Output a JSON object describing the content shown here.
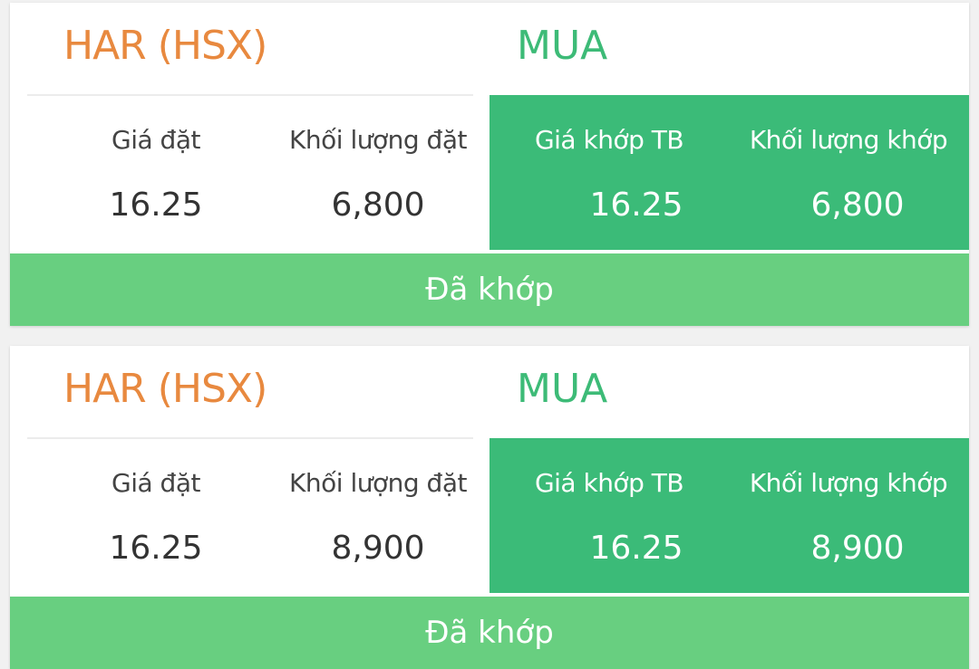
{
  "orders": [
    {
      "symbol": "HAR (HSX)",
      "side": "MUA",
      "order_price_label": "Giá đặt",
      "order_qty_label": "Khối lượng đặt",
      "match_price_label": "Giá khớp TB",
      "match_qty_label": "Khối lượng khớp",
      "order_price": "16.25",
      "order_qty": "6,800",
      "match_price": "16.25",
      "match_qty": "6,800",
      "status": "Đã khớp"
    },
    {
      "symbol": "HAR (HSX)",
      "side": "MUA",
      "order_price_label": "Giá đặt",
      "order_qty_label": "Khối lượng đặt",
      "match_price_label": "Giá khớp TB",
      "match_qty_label": "Khối lượng khớp",
      "order_price": "16.25",
      "order_qty": "8,900",
      "match_price": "16.25",
      "match_qty": "8,900",
      "status": "Đã khớp"
    }
  ],
  "colors": {
    "symbol": "#e8893f",
    "side_buy": "#3dbb77",
    "match_panel": "#3bbb78",
    "status_button": "#68cf80"
  }
}
